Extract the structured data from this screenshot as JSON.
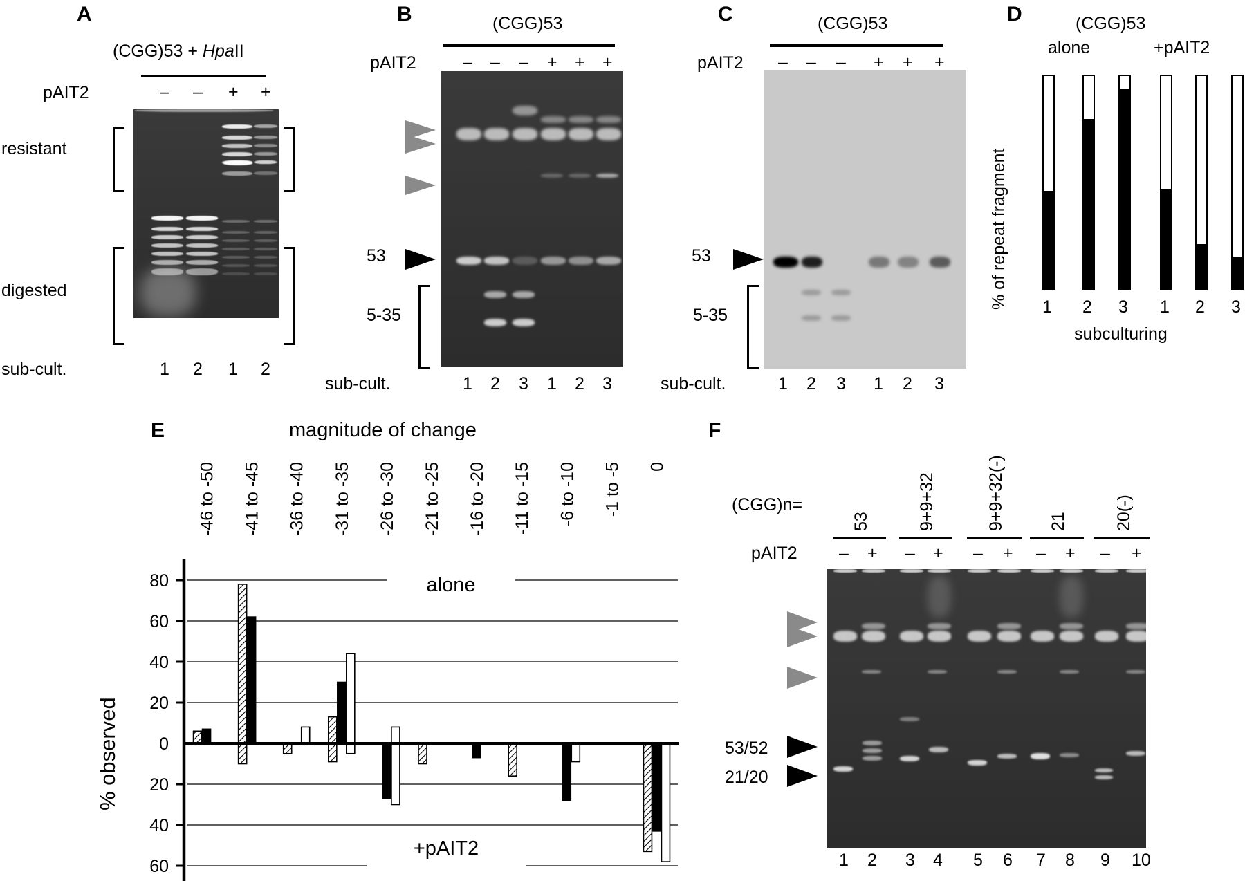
{
  "panelA": {
    "label": "A",
    "title_prefix": "(CGG)53 + ",
    "title_italic": "Hpa",
    "title_suffix": "II",
    "pait2_label": "pAIT2",
    "lanes": [
      "–",
      "–",
      "+",
      "+"
    ],
    "resistant_label": "resistant",
    "digested_label": "digested",
    "subcult_label": "sub-cult.",
    "subcult": [
      "1",
      "2",
      "1",
      "2"
    ]
  },
  "panelB": {
    "label": "B",
    "title": "(CGG)53",
    "pait2_label": "pAIT2",
    "lanes": [
      "–",
      "–",
      "–",
      "+",
      "+",
      "+"
    ],
    "marker_53": "53",
    "marker_range": "5-35",
    "subcult_label": "sub-cult.",
    "subcult": [
      "1",
      "2",
      "3",
      "1",
      "2",
      "3"
    ]
  },
  "panelC": {
    "label": "C",
    "title": "(CGG)53",
    "pait2_label": "pAIT2",
    "lanes": [
      "–",
      "–",
      "–",
      "+",
      "+",
      "+"
    ],
    "marker_53": "53",
    "marker_range": "5-35",
    "subcult_label": "sub-cult.",
    "subcult": [
      "1",
      "2",
      "3",
      "1",
      "2",
      "3"
    ]
  },
  "panelD": {
    "label": "D",
    "title": "(CGG)53",
    "group_alone": "alone",
    "group_pait2": "+pAIT2",
    "ylabel": "% of repeat fragment",
    "xlabel": "subculturing",
    "ticks": [
      "1",
      "2",
      "3",
      "1",
      "2",
      "3"
    ],
    "filled_fractions": [
      0.46,
      0.8,
      0.94,
      0.47,
      0.21,
      0.15
    ]
  },
  "chart_data": {
    "type": "bar",
    "title": "magnitude of change",
    "ylabel": "% observed",
    "top_label": "alone",
    "bottom_label": "+pAIT2",
    "categories": [
      "-46 to -50",
      "-41 to -45",
      "-36 to -40",
      "-31 to -35",
      "-26 to -30",
      "-21 to -25",
      "-16 to -20",
      "-11 to -15",
      "-6 to -10",
      "-1 to -5",
      "0"
    ],
    "yticks_top": [
      "80",
      "60",
      "40",
      "20",
      "0"
    ],
    "yticks_bottom": [
      "20",
      "40",
      "60"
    ],
    "ylim": [
      -60,
      80
    ],
    "series": [
      {
        "style": "hatched",
        "alone": [
          6,
          78,
          0,
          13,
          0,
          0,
          0,
          0,
          0,
          0,
          0
        ],
        "pait2": [
          0,
          10,
          5,
          9,
          0,
          10,
          0,
          16,
          0,
          0,
          53
        ]
      },
      {
        "style": "filled",
        "alone": [
          7,
          62,
          0,
          30,
          0,
          0,
          0,
          0,
          0,
          0,
          0
        ],
        "pait2": [
          0,
          0,
          0,
          0,
          27,
          0,
          7,
          0,
          28,
          0,
          43
        ]
      },
      {
        "style": "open",
        "alone": [
          0,
          0,
          8,
          44,
          8,
          0,
          0,
          0,
          0,
          0,
          0
        ],
        "pait2": [
          0,
          0,
          0,
          5,
          30,
          0,
          0,
          0,
          9,
          0,
          58
        ]
      }
    ]
  },
  "panelE": {
    "label": "E"
  },
  "panelF": {
    "label": "F",
    "cggn_label": "(CGG)n=",
    "groups": [
      "53",
      "9+9+32",
      "9+9+32(-)",
      "21",
      "20(-)"
    ],
    "pait2_label": "pAIT2",
    "lanes": [
      "–",
      "+",
      "–",
      "+",
      "–",
      "+",
      "–",
      "+",
      "–",
      "+"
    ],
    "marker_53_52": "53/52",
    "marker_21_20": "21/20",
    "lane_numbers": [
      "1",
      "2",
      "3",
      "4",
      "5",
      "6",
      "7",
      "8",
      "9",
      "10"
    ]
  }
}
